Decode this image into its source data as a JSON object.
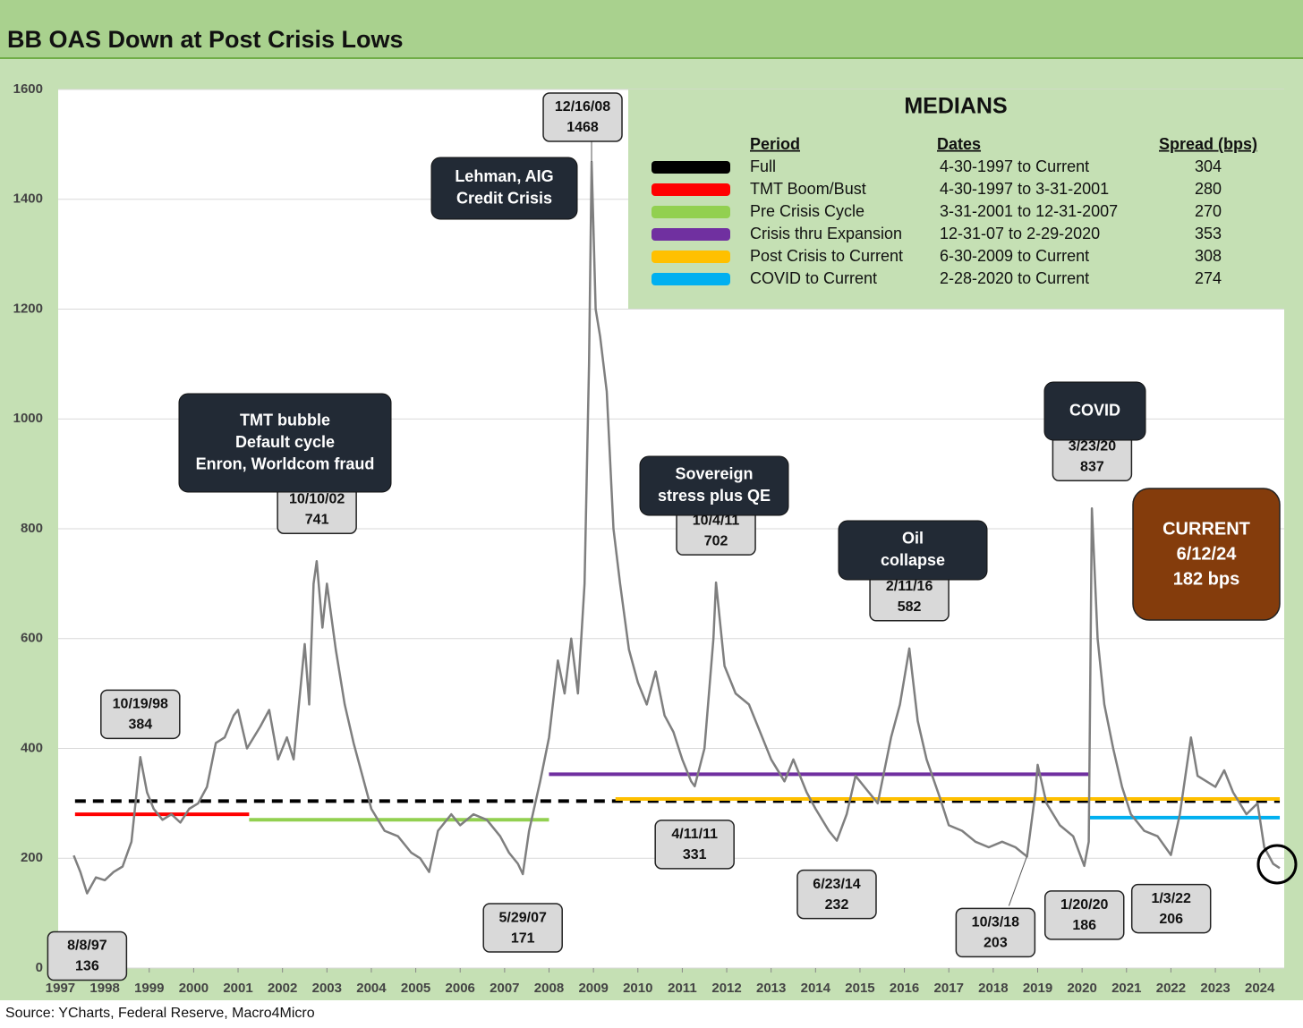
{
  "chart_data": {
    "type": "line",
    "title": "BB OAS Down at Post Crisis Lows",
    "source": "Source: YCharts, Federal Reserve, Macro4Micro",
    "color": "#7f7f7f",
    "xlim": [
      1996.95,
      2024.55
    ],
    "xticks": [
      1997,
      1998,
      1999,
      2000,
      2001,
      2002,
      2003,
      2004,
      2005,
      2006,
      2007,
      2008,
      2009,
      2010,
      2011,
      2012,
      2013,
      2014,
      2015,
      2016,
      2017,
      2018,
      2019,
      2020,
      2021,
      2022,
      2023,
      2024
    ],
    "ylim": [
      0,
      1600
    ],
    "yticks": [
      0,
      200,
      400,
      600,
      800,
      1000,
      1200,
      1400,
      1600
    ],
    "grid": true,
    "x": [
      1997.3,
      1997.45,
      1997.6,
      1997.8,
      1998.0,
      1998.2,
      1998.4,
      1998.6,
      1998.8,
      1998.95,
      1999.1,
      1999.3,
      1999.5,
      1999.7,
      1999.9,
      2000.1,
      2000.3,
      2000.5,
      2000.7,
      2000.9,
      2001.0,
      2001.2,
      2001.5,
      2001.7,
      2001.9,
      2002.1,
      2002.25,
      2002.5,
      2002.6,
      2002.7,
      2002.77,
      2002.9,
      2003.0,
      2003.2,
      2003.4,
      2003.6,
      2003.8,
      2004.0,
      2004.3,
      2004.6,
      2004.9,
      2005.1,
      2005.3,
      2005.5,
      2005.8,
      2006.0,
      2006.3,
      2006.6,
      2006.9,
      2007.1,
      2007.3,
      2007.41,
      2007.55,
      2007.8,
      2008.0,
      2008.2,
      2008.35,
      2008.5,
      2008.65,
      2008.8,
      2008.9,
      2008.96,
      2009.05,
      2009.15,
      2009.3,
      2009.45,
      2009.6,
      2009.8,
      2010.0,
      2010.2,
      2010.4,
      2010.6,
      2010.8,
      2011.0,
      2011.2,
      2011.28,
      2011.5,
      2011.7,
      2011.76,
      2011.95,
      2012.2,
      2012.5,
      2012.8,
      2013.0,
      2013.3,
      2013.5,
      2013.8,
      2014.0,
      2014.3,
      2014.48,
      2014.7,
      2014.9,
      2015.1,
      2015.4,
      2015.7,
      2015.9,
      2016.11,
      2016.3,
      2016.5,
      2016.8,
      2017.0,
      2017.3,
      2017.6,
      2017.9,
      2018.2,
      2018.5,
      2018.76,
      2018.95,
      2019.0,
      2019.2,
      2019.5,
      2019.8,
      2020.05,
      2020.15,
      2020.22,
      2020.35,
      2020.5,
      2020.7,
      2020.9,
      2021.1,
      2021.4,
      2021.7,
      2022.0,
      2022.2,
      2022.45,
      2022.6,
      2022.8,
      2023.0,
      2023.2,
      2023.4,
      2023.7,
      2023.95,
      2024.1,
      2024.3,
      2024.45
    ],
    "values": [
      205,
      175,
      136,
      165,
      160,
      175,
      185,
      230,
      384,
      320,
      290,
      270,
      280,
      265,
      290,
      300,
      330,
      410,
      420,
      460,
      470,
      400,
      440,
      470,
      380,
      420,
      380,
      590,
      480,
      700,
      741,
      620,
      700,
      580,
      480,
      410,
      350,
      290,
      250,
      240,
      210,
      200,
      175,
      250,
      280,
      260,
      280,
      270,
      240,
      210,
      190,
      171,
      250,
      340,
      420,
      560,
      500,
      600,
      500,
      700,
      1100,
      1468,
      1200,
      1150,
      1050,
      800,
      700,
      580,
      520,
      480,
      540,
      460,
      430,
      380,
      340,
      331,
      400,
      600,
      702,
      550,
      500,
      480,
      420,
      380,
      340,
      380,
      320,
      290,
      250,
      232,
      280,
      350,
      330,
      300,
      420,
      480,
      582,
      450,
      380,
      310,
      260,
      250,
      230,
      220,
      230,
      220,
      203,
      320,
      370,
      300,
      260,
      240,
      186,
      230,
      837,
      600,
      480,
      400,
      330,
      280,
      250,
      240,
      206,
      280,
      420,
      350,
      340,
      330,
      360,
      320,
      280,
      300,
      220,
      190,
      182
    ],
    "annotations": [
      {
        "date": "8/8/97",
        "value": 136
      },
      {
        "date": "10/19/98",
        "value": 384
      },
      {
        "date": "10/10/02",
        "value": 741
      },
      {
        "date": "5/29/07",
        "value": 171
      },
      {
        "date": "12/16/08",
        "value": 1468
      },
      {
        "date": "4/11/11",
        "value": 331
      },
      {
        "date": "10/4/11",
        "value": 702
      },
      {
        "date": "6/23/14",
        "value": 232
      },
      {
        "date": "2/11/16",
        "value": 582
      },
      {
        "date": "10/3/18",
        "value": 203
      },
      {
        "date": "3/23/20",
        "value": 837
      },
      {
        "date": "1/20/20",
        "value": 186
      },
      {
        "date": "1/3/22",
        "value": 206
      }
    ],
    "notes": [
      [
        "TMT bubble",
        "Default cycle",
        "Enron, Worldcom fraud"
      ],
      [
        "Lehman, AIG",
        "Credit Crisis"
      ],
      [
        "Sovereign",
        "stress plus QE"
      ],
      [
        "Oil",
        "collapse"
      ],
      [
        "COVID"
      ]
    ],
    "current": [
      "CURRENT",
      "6/12/24",
      "182 bps"
    ],
    "medians_title": "MEDIANS",
    "medians_headers": [
      "Period",
      "Dates",
      "Spread (bps)"
    ],
    "medians": [
      {
        "name": "Full",
        "dates": "4-30-1997 to Current",
        "value": 304,
        "color": "#000000",
        "dashed": true
      },
      {
        "name": "TMT Boom/Bust",
        "dates": "4-30-1997 to 3-31-2001",
        "value": 280,
        "color": "#ff0000"
      },
      {
        "name": "Pre Crisis Cycle",
        "dates": "3-31-2001 to 12-31-2007",
        "value": 270,
        "color": "#92d050"
      },
      {
        "name": "Crisis thru Expansion",
        "dates": "12-31-07 to 2-29-2020",
        "value": 353,
        "color": "#7030a0"
      },
      {
        "name": "Post Crisis to Current",
        "dates": "6-30-2009 to Current",
        "value": 308,
        "color": "#ffc000"
      },
      {
        "name": "COVID to Current",
        "dates": "2-28-2020 to Current",
        "value": 274,
        "color": "#00b0f0"
      }
    ]
  }
}
